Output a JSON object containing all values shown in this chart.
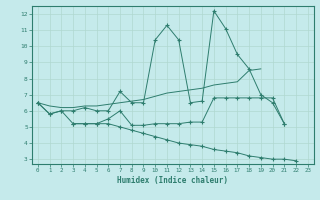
{
  "xlabel": "Humidex (Indice chaleur)",
  "x": [
    0,
    1,
    2,
    3,
    4,
    5,
    6,
    7,
    8,
    9,
    10,
    11,
    12,
    13,
    14,
    15,
    16,
    17,
    18,
    19,
    20,
    21,
    22,
    23
  ],
  "line_jagged": [
    6.5,
    5.8,
    6.0,
    6.0,
    6.2,
    6.0,
    6.0,
    7.2,
    6.5,
    6.5,
    10.4,
    11.3,
    10.4,
    6.5,
    6.6,
    12.2,
    11.1,
    9.5,
    8.6,
    7.0,
    6.5,
    5.2,
    null,
    null
  ],
  "line_smooth": [
    6.5,
    6.3,
    6.2,
    6.2,
    6.3,
    6.3,
    6.4,
    6.5,
    6.6,
    6.7,
    6.9,
    7.1,
    7.2,
    7.3,
    7.4,
    7.6,
    7.7,
    7.8,
    8.5,
    8.6,
    null,
    null,
    null,
    null
  ],
  "line_mid": [
    6.5,
    5.8,
    6.0,
    5.2,
    5.2,
    5.2,
    5.5,
    6.0,
    5.1,
    5.1,
    5.2,
    5.2,
    5.2,
    5.3,
    5.3,
    6.8,
    6.8,
    6.8,
    6.8,
    6.8,
    6.8,
    5.2,
    null,
    null
  ],
  "line_bottom": [
    6.5,
    null,
    null,
    5.2,
    5.2,
    5.2,
    5.2,
    5.0,
    4.8,
    4.6,
    4.4,
    4.2,
    4.0,
    3.9,
    3.8,
    3.6,
    3.5,
    3.4,
    3.2,
    3.1,
    3.0,
    3.0,
    2.9,
    null
  ],
  "color": "#2e7d6e",
  "bg_color": "#c5eaeb",
  "grid_color": "#b0d8d0",
  "ylim": [
    2.7,
    12.5
  ],
  "xlim": [
    -0.5,
    23.5
  ],
  "yticks": [
    3,
    4,
    5,
    6,
    7,
    8,
    9,
    10,
    11,
    12
  ],
  "xticks": [
    0,
    1,
    2,
    3,
    4,
    5,
    6,
    7,
    8,
    9,
    10,
    11,
    12,
    13,
    14,
    15,
    16,
    17,
    18,
    19,
    20,
    21,
    22,
    23
  ]
}
